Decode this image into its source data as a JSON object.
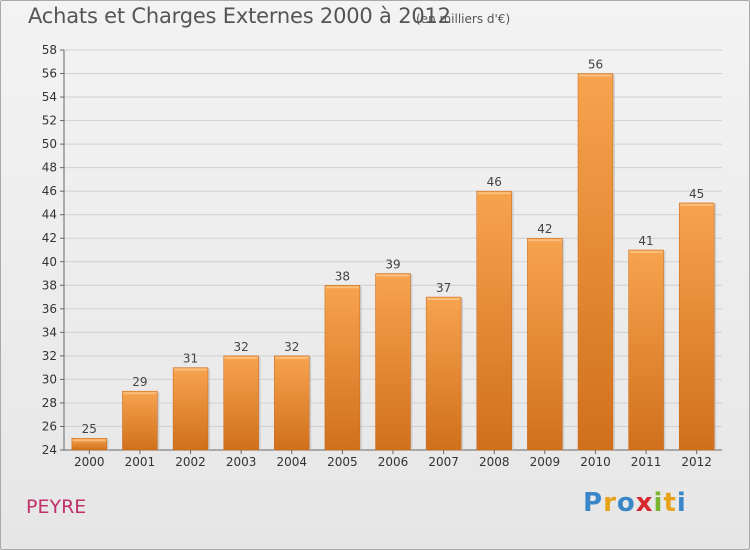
{
  "header": {
    "title": "Achats et Charges Externes 2000 à 2012",
    "subtitle": "(en milliers d'€)"
  },
  "footer": {
    "commune": "PEYRE",
    "logo_text": "Proxiti"
  },
  "colors": {
    "bar_top": "#f7a34e",
    "bar_bottom": "#d0701c",
    "grid": "#d0d0d0",
    "commune": "#c0306a"
  },
  "chart_data": {
    "type": "bar",
    "title": "Achats et Charges Externes 2000 à 2012",
    "subtitle": "(en milliers d'€)",
    "xlabel": "",
    "ylabel": "",
    "categories": [
      "2000",
      "2001",
      "2002",
      "2003",
      "2004",
      "2005",
      "2006",
      "2007",
      "2008",
      "2009",
      "2010",
      "2011",
      "2012"
    ],
    "values": [
      25,
      29,
      31,
      32,
      32,
      38,
      39,
      37,
      46,
      42,
      56,
      41,
      45
    ],
    "ylim": [
      24,
      58
    ],
    "yticks": [
      24,
      26,
      28,
      30,
      32,
      34,
      36,
      38,
      40,
      42,
      44,
      46,
      48,
      50,
      52,
      54,
      56,
      58
    ],
    "grid": true,
    "legend": "none"
  }
}
